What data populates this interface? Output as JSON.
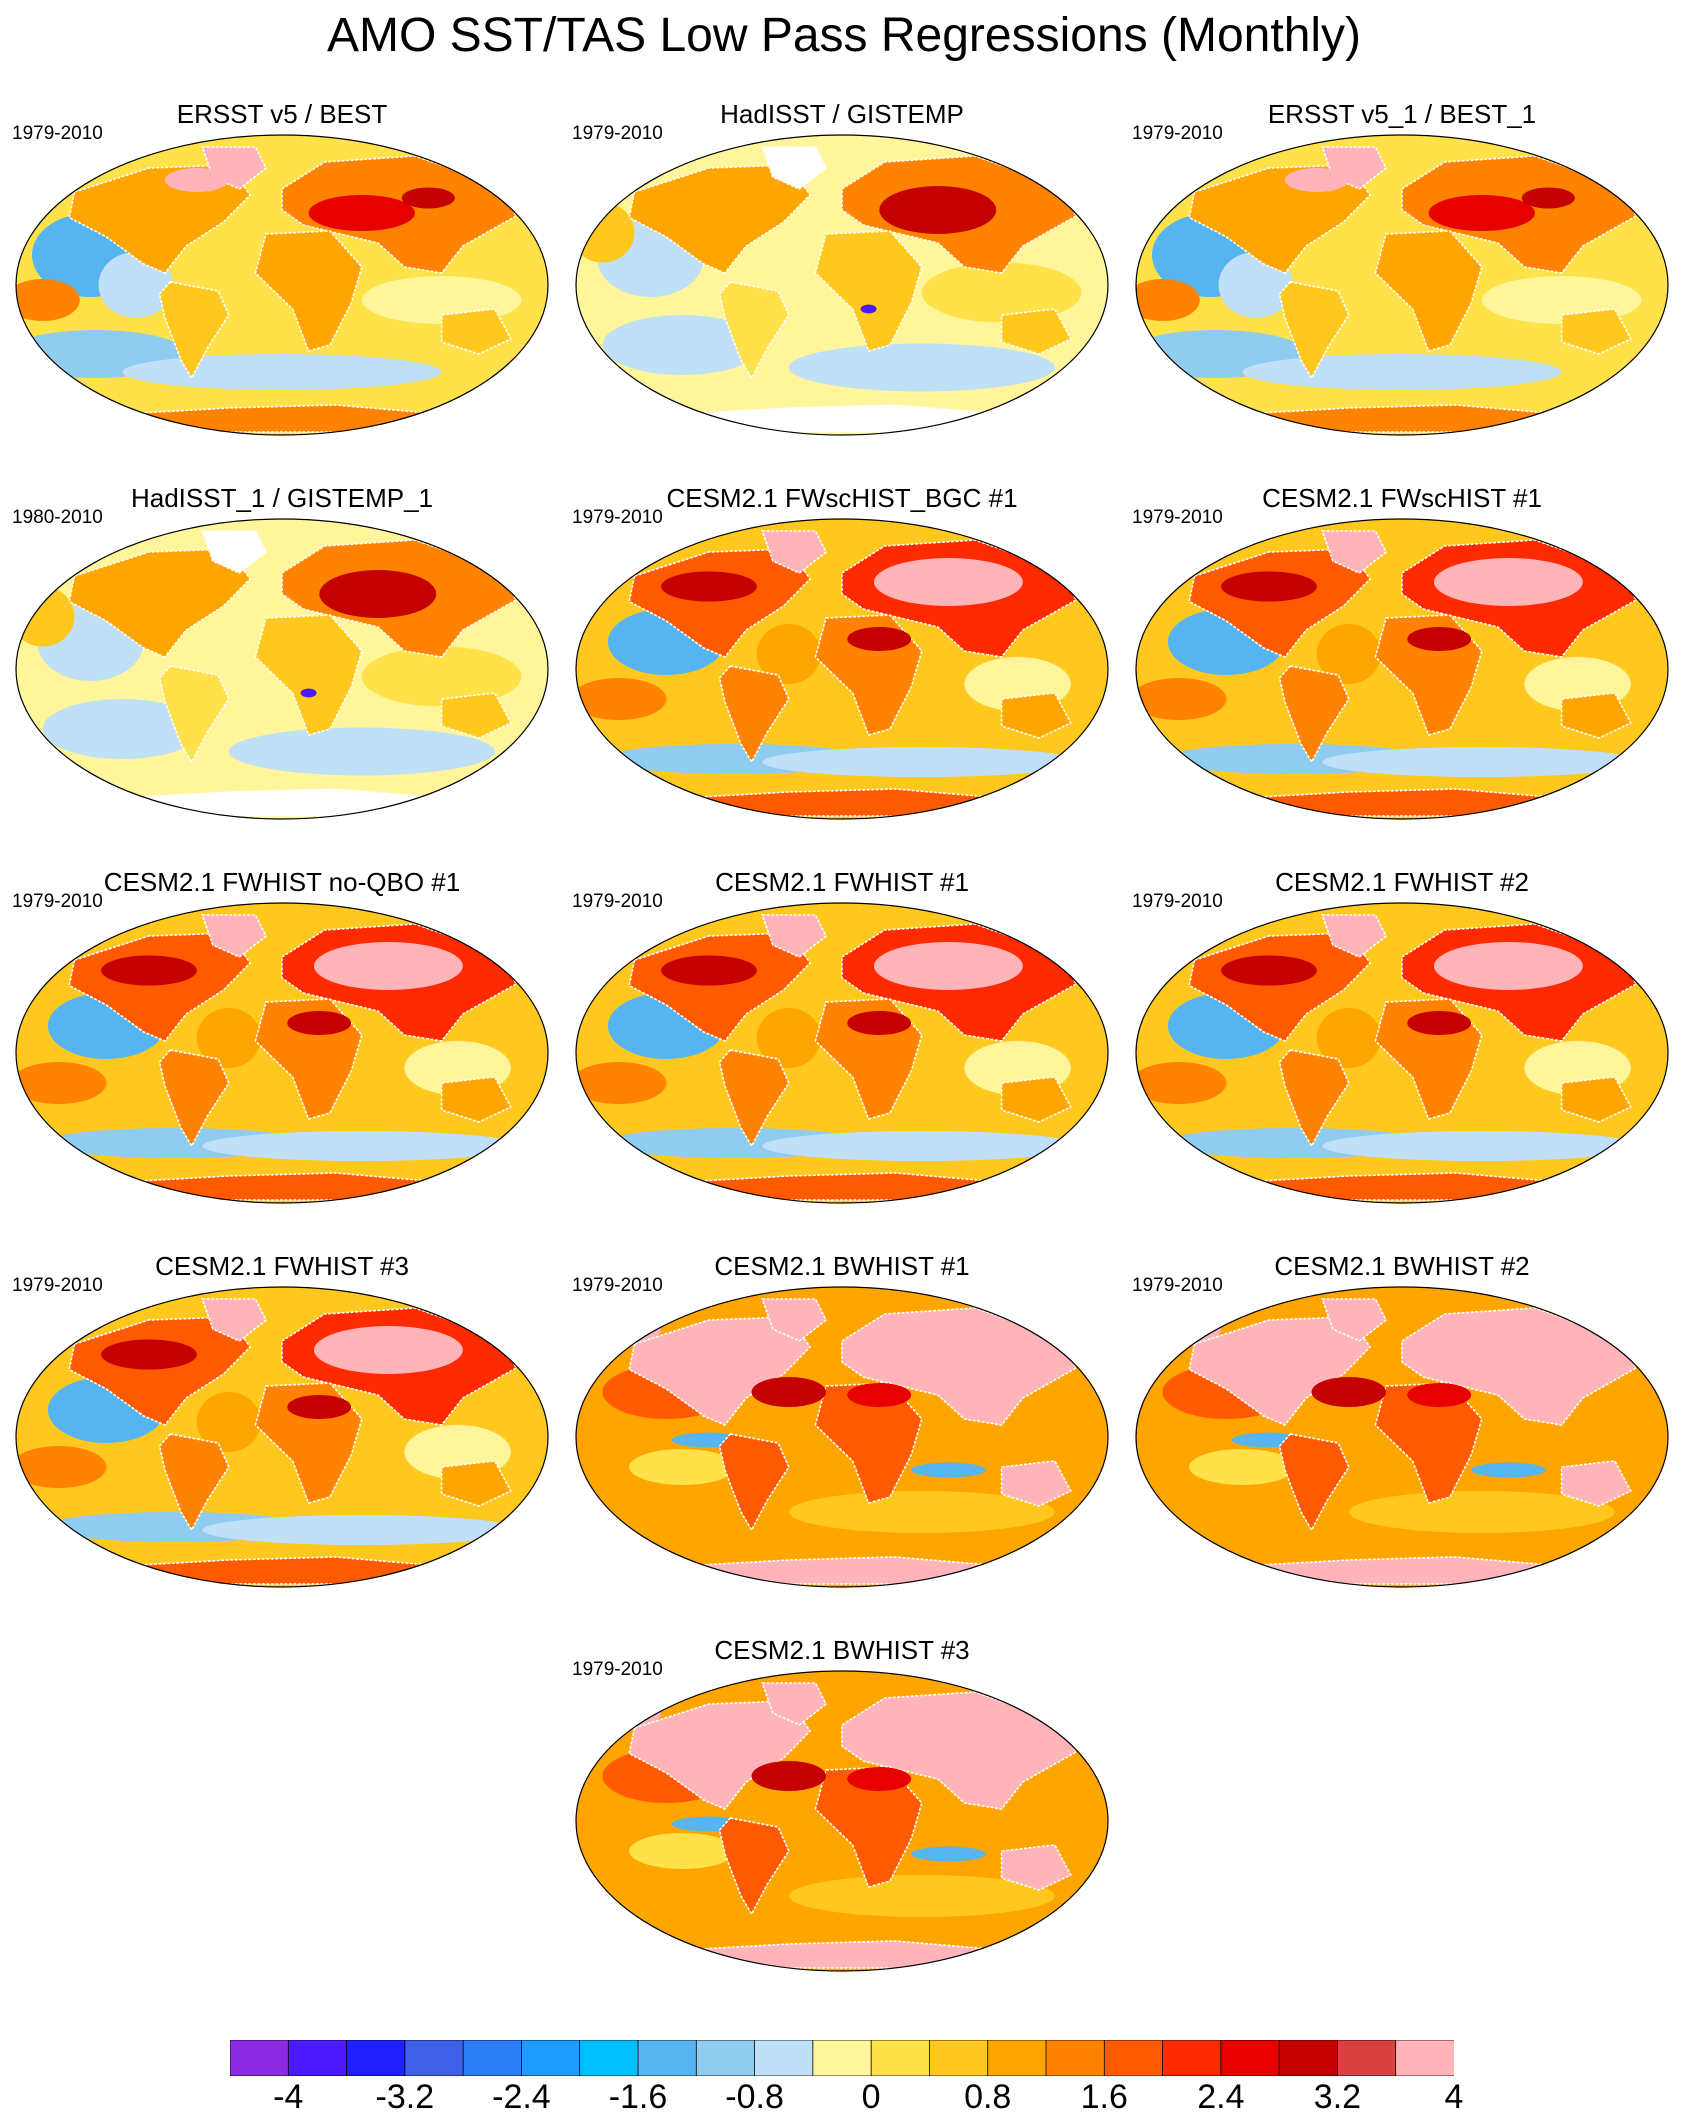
{
  "title": "AMO SST/TAS Low Pass Regressions (Monthly)",
  "panels": [
    {
      "title": "ERSST v5 / BEST",
      "years": "1979-2010",
      "style": "obs_a"
    },
    {
      "title": "HadISST / GISTEMP",
      "years": "1979-2010",
      "style": "obs_b"
    },
    {
      "title": "ERSST v5_1 / BEST_1",
      "years": "1979-2010",
      "style": "obs_a"
    },
    {
      "title": "HadISST_1 / GISTEMP_1",
      "years": "1980-2010",
      "style": "obs_b"
    },
    {
      "title": "CESM2.1 FWscHIST_BGC #1",
      "years": "1979-2010",
      "style": "model"
    },
    {
      "title": "CESM2.1 FWscHIST #1",
      "years": "1979-2010",
      "style": "model"
    },
    {
      "title": "CESM2.1 FWHIST no-QBO #1",
      "years": "1979-2010",
      "style": "model"
    },
    {
      "title": "CESM2.1 FWHIST #1",
      "years": "1979-2010",
      "style": "model"
    },
    {
      "title": "CESM2.1 FWHIST #2",
      "years": "1979-2010",
      "style": "model"
    },
    {
      "title": "CESM2.1 FWHIST #3",
      "years": "1979-2010",
      "style": "model"
    },
    {
      "title": "CESM2.1 BWHIST #1",
      "years": "1979-2010",
      "style": "warm"
    },
    {
      "title": "CESM2.1 BWHIST #2",
      "years": "1979-2010",
      "style": "warm"
    },
    {
      "title": "CESM2.1 BWHIST #3",
      "years": "1979-2010",
      "style": "warm"
    }
  ],
  "colorbar": {
    "labels": [
      "-4",
      "-3.2",
      "-2.4",
      "-1.6",
      "-0.8",
      "0",
      "0.8",
      "1.6",
      "2.4",
      "3.2",
      "4"
    ],
    "colors": [
      "#8a2be2",
      "#4b1aff",
      "#1f1fff",
      "#3f5fe8",
      "#2b7df5",
      "#1e9bff",
      "#00bfff",
      "#56b4f0",
      "#90cbf0",
      "#bfe0f7",
      "#fff59a",
      "#ffe14a",
      "#ffc81f",
      "#ffa500",
      "#ff8200",
      "#ff5a00",
      "#ff2a00",
      "#e60000",
      "#c40000",
      "#d94040",
      "#ffb4b9"
    ]
  }
}
